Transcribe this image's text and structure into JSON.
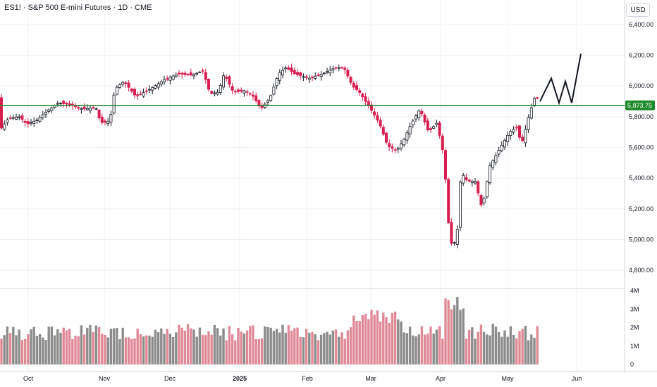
{
  "header": {
    "title": "ES1! · S&P 500 E-mini Futures · 1D · CME",
    "currency": "USD"
  },
  "colors": {
    "up": "#131722",
    "down": "#d81e4f",
    "up_fill": "#ffffff",
    "level_line": "#1f8a2a",
    "vol_up": "#8c8c8c",
    "vol_down": "#e08a97",
    "grid": "#eef0f3"
  },
  "chart_data": {
    "type": "candlestick",
    "symbol": "ES1!",
    "timeframe": "1D",
    "price_axis": {
      "ticks": [
        "6,400.00",
        "6,200.00",
        "6,000.00",
        "5,800.00",
        "5,600.00",
        "5,400.00",
        "5,200.00",
        "5,000.00",
        "4,800.00"
      ],
      "ylim": [
        4700,
        6560
      ]
    },
    "volume_axis": {
      "ticks": [
        "4M",
        "3M",
        "2M",
        "1M",
        "0"
      ],
      "ylim": [
        0,
        4
      ]
    },
    "time_axis": {
      "labels": [
        "Oct",
        "Nov",
        "Dec",
        "2025",
        "Feb",
        "Mar",
        "Apr",
        "May",
        "Jun"
      ]
    },
    "horizontal_level": {
      "value": 5873.75,
      "label": "5,873.75"
    },
    "projection_path": [
      5900,
      6050,
      5890,
      6030,
      5890,
      6210
    ]
  }
}
